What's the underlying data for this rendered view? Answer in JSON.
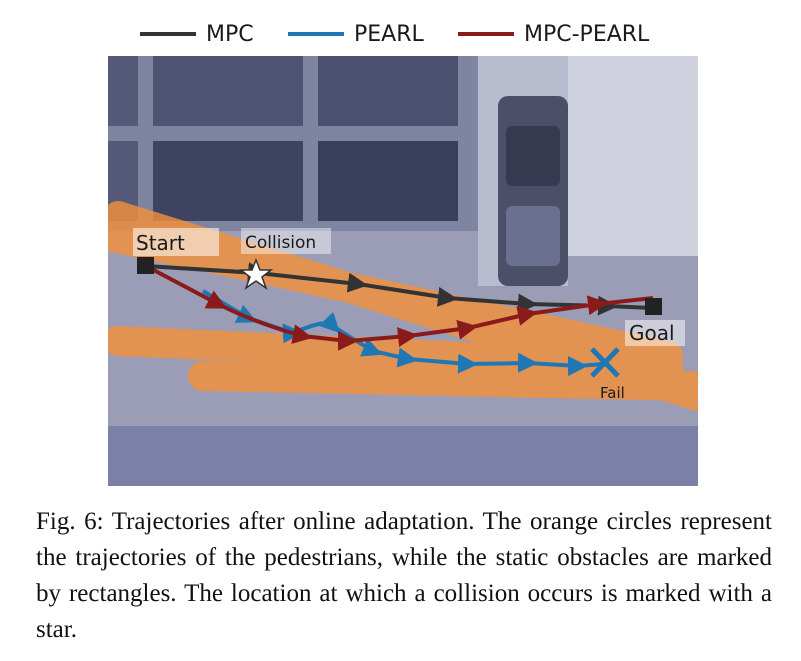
{
  "legend": [
    {
      "label": "MPC",
      "color": "#333333"
    },
    {
      "label": "PEARL",
      "color": "#1f77b4"
    },
    {
      "label": "MPC-PEARL",
      "color": "#8b1a1a"
    }
  ],
  "scene": {
    "start_label": "Start",
    "goal_label": "Goal",
    "collision_label": "Collision",
    "fail_label": "Fail",
    "pedestrian_color": "#f5913a",
    "mpc_color": "#333333",
    "pearl_color": "#1f77b4",
    "mpc_pearl_color": "#8b1a1a"
  },
  "caption": "Fig. 6: Trajectories after online adaptation. The orange circles represent the trajectories of the pedestrians, while the static obstacles are marked by rectangles. The location at which a collision occurs is marked with a star."
}
